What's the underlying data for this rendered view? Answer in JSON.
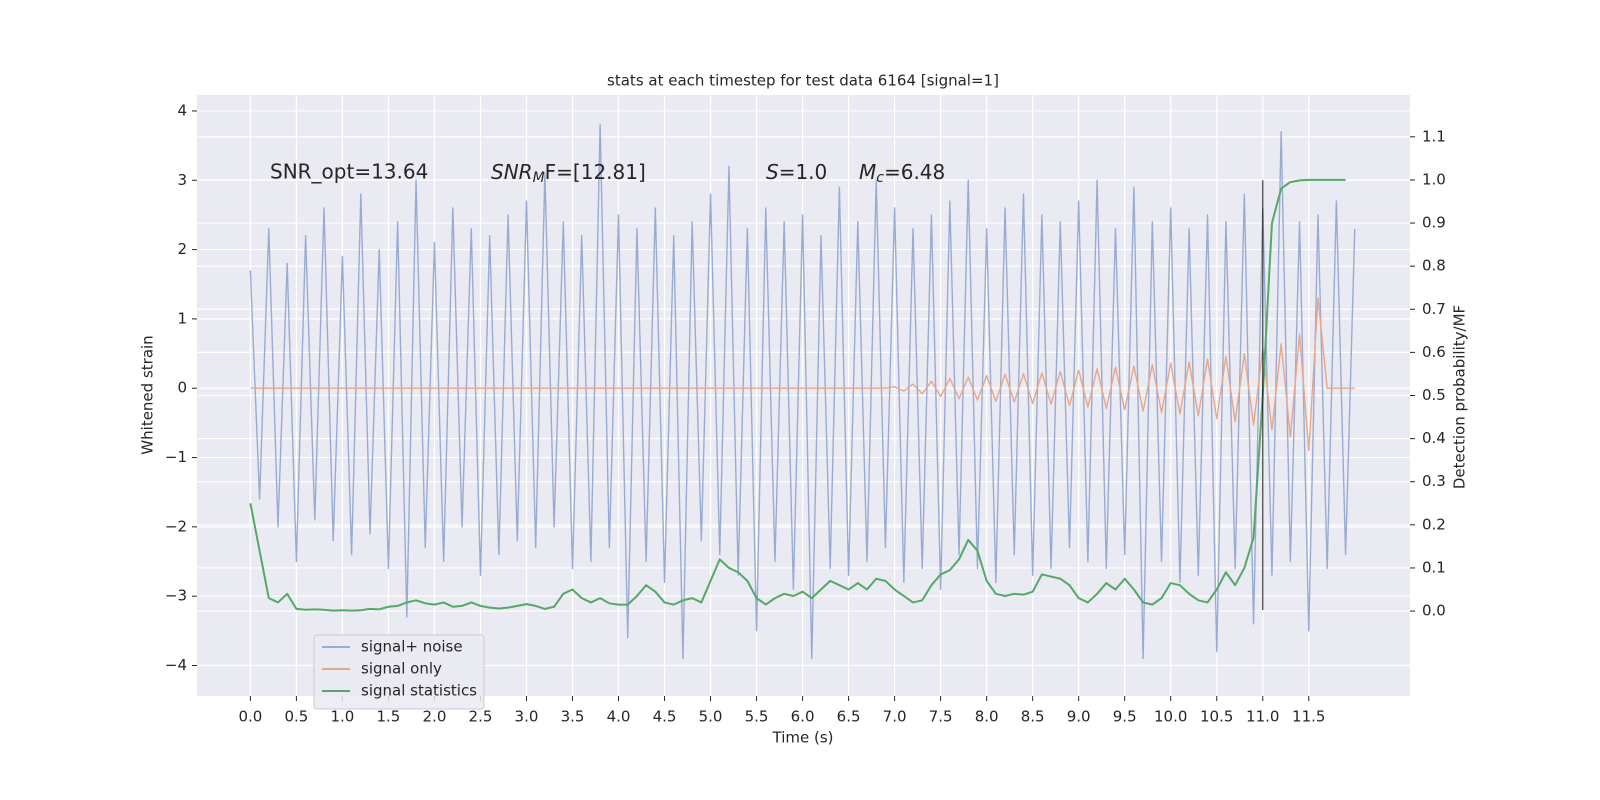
{
  "chart_data": {
    "type": "line",
    "title": "stats at each timestep for test data 6164 [signal=1]",
    "xlabel": "Time (s)",
    "ylabel": "Whitened strain",
    "y2label": "Detection probability/MF",
    "annotations": [
      {
        "text": "SNR_opt=13.64"
      },
      {
        "base": "SNR",
        "sub": "M",
        "rest": "F=[12.81]"
      },
      {
        "base": "S",
        "rest": "=1.0"
      },
      {
        "base": "M",
        "sub": "c",
        "rest": "=6.48"
      }
    ],
    "xlim": [
      -0.58,
      12.6
    ],
    "ylim": [
      -4.44,
      4.23
    ],
    "y2lim": [
      -0.197,
      1.197
    ],
    "xticks": [
      {
        "value": 0,
        "label": "0.0"
      },
      0.5,
      {
        "value": 1,
        "label": "1.0"
      },
      1.5,
      {
        "value": 2,
        "label": "2.0"
      },
      2.5,
      {
        "value": 3,
        "label": "3.0"
      },
      3.5,
      {
        "value": 4,
        "label": "4.0"
      },
      4.5,
      {
        "value": 5,
        "label": "5.0"
      },
      5.5,
      {
        "value": 6,
        "label": "6.0"
      },
      6.5,
      {
        "value": 7,
        "label": "7.0"
      },
      7.5,
      {
        "value": 8,
        "label": "8.0"
      },
      8.5,
      {
        "value": 9,
        "label": "9.0"
      },
      9.5,
      {
        "value": 10,
        "label": "10.0"
      },
      10.5,
      {
        "value": 11,
        "label": "11.0"
      },
      11.5
    ],
    "yticks": [
      {
        "value": -4,
        "label": "−4"
      },
      {
        "value": -3,
        "label": "−3"
      },
      {
        "value": -2,
        "label": "−2"
      },
      {
        "value": -1,
        "label": "−1"
      },
      0,
      1,
      2,
      3,
      4
    ],
    "y2ticks": [
      {
        "value": 0,
        "label": "0.0"
      },
      0.1,
      0.2,
      0.3,
      0.4,
      0.5,
      0.6,
      0.7,
      0.8,
      0.9,
      {
        "value": 1,
        "label": "1.0"
      },
      1.1
    ],
    "grid": true,
    "legend": "lower left",
    "vline": {
      "x": 11.0,
      "y": [
        -3.2,
        3.0
      ],
      "color": "#000000"
    },
    "x": [
      0,
      0.1,
      0.2,
      0.3,
      0.4,
      0.5,
      0.6,
      0.7,
      0.8,
      0.9,
      1,
      1.1,
      1.2,
      1.3,
      1.4,
      1.5,
      1.6,
      1.7,
      1.8,
      1.9,
      2,
      2.1,
      2.2,
      2.3,
      2.4,
      2.5,
      2.6,
      2.7,
      2.8,
      2.9,
      3,
      3.1,
      3.2,
      3.3,
      3.4,
      3.5,
      3.6,
      3.7,
      3.8,
      3.9,
      4,
      4.1,
      4.2,
      4.3,
      4.4,
      4.5,
      4.6,
      4.7,
      4.8,
      4.9,
      5,
      5.1,
      5.2,
      5.3,
      5.4,
      5.5,
      5.6,
      5.7,
      5.8,
      5.9,
      6,
      6.1,
      6.2,
      6.3,
      6.4,
      6.5,
      6.6,
      6.7,
      6.8,
      6.9,
      7,
      7.1,
      7.2,
      7.3,
      7.4,
      7.5,
      7.6,
      7.7,
      7.8,
      7.9,
      8,
      8.1,
      8.2,
      8.3,
      8.4,
      8.5,
      8.6,
      8.7,
      8.8,
      8.9,
      9,
      9.1,
      9.2,
      9.3,
      9.4,
      9.5,
      9.6,
      9.7,
      9.8,
      9.9,
      10,
      10.1,
      10.2,
      10.3,
      10.4,
      10.5,
      10.6,
      10.7,
      10.8,
      10.9,
      11,
      11.1,
      11.2,
      11.3,
      11.4,
      11.5,
      11.6,
      11.7,
      11.8,
      11.9,
      12
    ],
    "series": [
      {
        "name": "signal+ noise",
        "color": "#9aabd3",
        "values": [
          1.7,
          -1.6,
          2.3,
          -2.0,
          1.8,
          -2.5,
          2.2,
          -1.9,
          2.6,
          -2.2,
          1.9,
          -2.4,
          2.8,
          -2.1,
          2.0,
          -2.6,
          2.4,
          -3.3,
          3.0,
          -2.3,
          2.1,
          -2.5,
          2.6,
          -2.0,
          2.3,
          -2.7,
          2.2,
          -2.4,
          2.5,
          -2.2,
          2.7,
          -2.3,
          3.1,
          -2.0,
          2.4,
          -2.6,
          2.2,
          -2.5,
          3.8,
          -2.3,
          2.5,
          -3.6,
          2.3,
          -2.5,
          2.6,
          -2.8,
          2.2,
          -3.9,
          2.4,
          -2.2,
          2.8,
          -2.4,
          3.2,
          -2.7,
          2.3,
          -3.5,
          2.6,
          -2.5,
          2.4,
          -2.9,
          2.5,
          -3.9,
          2.2,
          -2.6,
          2.9,
          -2.7,
          2.4,
          -2.5,
          3.0,
          -2.3,
          2.6,
          -2.8,
          2.3,
          -2.6,
          2.5,
          -2.9,
          2.7,
          -2.4,
          3.0,
          -2.6,
          2.3,
          -2.8,
          2.6,
          -2.4,
          2.8,
          -2.7,
          2.5,
          -2.6,
          2.4,
          -2.3,
          2.7,
          -2.5,
          3.0,
          -2.6,
          2.3,
          -2.4,
          2.9,
          -3.9,
          2.4,
          -2.5,
          2.6,
          -2.8,
          2.3,
          -2.7,
          2.5,
          -3.8,
          2.4,
          -2.6,
          2.8,
          -3.4,
          2.6,
          -2.7,
          3.7,
          -2.5,
          2.4,
          -3.5,
          2.5,
          -2.6,
          2.7,
          -2.4,
          2.3
        ]
      },
      {
        "name": "signal only",
        "color": "#e8a788",
        "values": [
          0,
          0,
          0,
          0,
          0,
          0,
          0,
          0,
          0,
          0,
          0,
          0,
          0,
          0,
          0,
          0,
          0,
          0,
          0,
          0,
          0,
          0,
          0,
          0,
          0,
          0,
          0,
          0,
          0,
          0,
          0,
          0,
          0,
          0,
          0,
          0,
          0,
          0,
          0,
          0,
          0,
          0,
          0,
          0,
          0,
          0,
          0,
          0,
          0,
          0,
          0,
          0,
          0,
          0,
          0,
          0,
          0,
          0,
          0,
          0,
          0,
          0,
          0,
          0,
          0,
          0,
          0,
          0,
          0,
          0,
          0.02,
          -0.04,
          0.06,
          -0.08,
          0.1,
          -0.12,
          0.14,
          -0.15,
          0.16,
          -0.17,
          0.18,
          -0.19,
          0.2,
          -0.2,
          0.21,
          -0.22,
          0.22,
          -0.23,
          0.24,
          -0.25,
          0.26,
          -0.27,
          0.28,
          -0.29,
          0.3,
          -0.31,
          0.32,
          -0.33,
          0.34,
          -0.35,
          0.36,
          -0.37,
          0.38,
          -0.4,
          0.42,
          -0.44,
          0.46,
          -0.48,
          0.5,
          -0.53,
          0.56,
          -0.6,
          0.64,
          -0.7,
          0.78,
          -0.9,
          1.3,
          0,
          0,
          0,
          0
        ]
      },
      {
        "name": "signal statistics",
        "color": "#55a868",
        "axis": "y2",
        "values": [
          0.25,
          0.14,
          0.03,
          0.02,
          0.04,
          0.005,
          0.003,
          0.004,
          0.003,
          0.001,
          0.002,
          0.001,
          0.002,
          0.005,
          0.004,
          0.01,
          0.012,
          0.02,
          0.025,
          0.018,
          0.015,
          0.02,
          0.01,
          0.012,
          0.02,
          0.012,
          0.008,
          0.006,
          0.008,
          0.012,
          0.016,
          0.012,
          0.005,
          0.01,
          0.04,
          0.05,
          0.03,
          0.02,
          0.03,
          0.018,
          0.015,
          0.015,
          0.035,
          0.06,
          0.045,
          0.02,
          0.015,
          0.025,
          0.03,
          0.02,
          0.07,
          0.12,
          0.1,
          0.09,
          0.07,
          0.03,
          0.015,
          0.03,
          0.04,
          0.035,
          0.045,
          0.03,
          0.05,
          0.07,
          0.06,
          0.05,
          0.065,
          0.05,
          0.075,
          0.07,
          0.05,
          0.035,
          0.02,
          0.025,
          0.06,
          0.085,
          0.095,
          0.12,
          0.165,
          0.14,
          0.07,
          0.04,
          0.035,
          0.04,
          0.038,
          0.045,
          0.085,
          0.08,
          0.075,
          0.06,
          0.03,
          0.02,
          0.04,
          0.065,
          0.05,
          0.075,
          0.05,
          0.02,
          0.015,
          0.03,
          0.065,
          0.06,
          0.04,
          0.025,
          0.02,
          0.05,
          0.09,
          0.06,
          0.1,
          0.17,
          0.5,
          0.9,
          0.98,
          0.995,
          0.999,
          1.0,
          1.0,
          1.0,
          1.0,
          1.0,
          null
        ]
      }
    ]
  }
}
